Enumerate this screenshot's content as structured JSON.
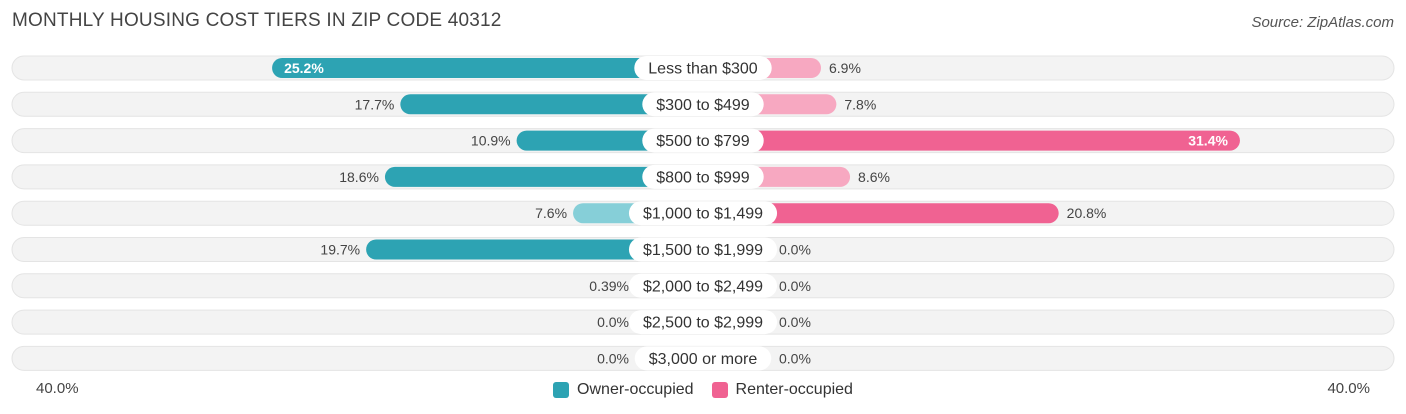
{
  "title": "MONTHLY HOUSING COST TIERS IN ZIP CODE 40312",
  "source": "Source: ZipAtlas.com",
  "colors": {
    "owner_dark": "#2da3b3",
    "owner_light": "#86cfd8",
    "renter_dark": "#f06292",
    "renter_light": "#f7a8c1",
    "track": "#f1f1f1"
  },
  "chart_data": {
    "type": "bar",
    "orientation": "diverging-horizontal",
    "categories": [
      "Less than $300",
      "$300 to $499",
      "$500 to $799",
      "$800 to $999",
      "$1,000 to $1,499",
      "$1,500 to $1,999",
      "$2,000 to $2,499",
      "$2,500 to $2,999",
      "$3,000 or more"
    ],
    "series": [
      {
        "name": "Owner-occupied",
        "values": [
          25.2,
          17.7,
          10.9,
          18.6,
          7.6,
          19.7,
          0.39,
          0.0,
          0.0
        ],
        "labels": [
          "25.2%",
          "17.7%",
          "10.9%",
          "18.6%",
          "7.6%",
          "19.7%",
          "0.39%",
          "0.0%",
          "0.0%"
        ]
      },
      {
        "name": "Renter-occupied",
        "values": [
          6.9,
          7.8,
          31.4,
          8.6,
          20.8,
          0.0,
          0.0,
          0.0,
          0.0
        ],
        "labels": [
          "6.9%",
          "7.8%",
          "31.4%",
          "8.6%",
          "20.8%",
          "0.0%",
          "0.0%",
          "0.0%",
          "0.0%"
        ]
      }
    ],
    "xlim": [
      -40,
      40
    ],
    "axis_left_label": "40.0%",
    "axis_right_label": "40.0%",
    "legend_position": "bottom-center"
  }
}
